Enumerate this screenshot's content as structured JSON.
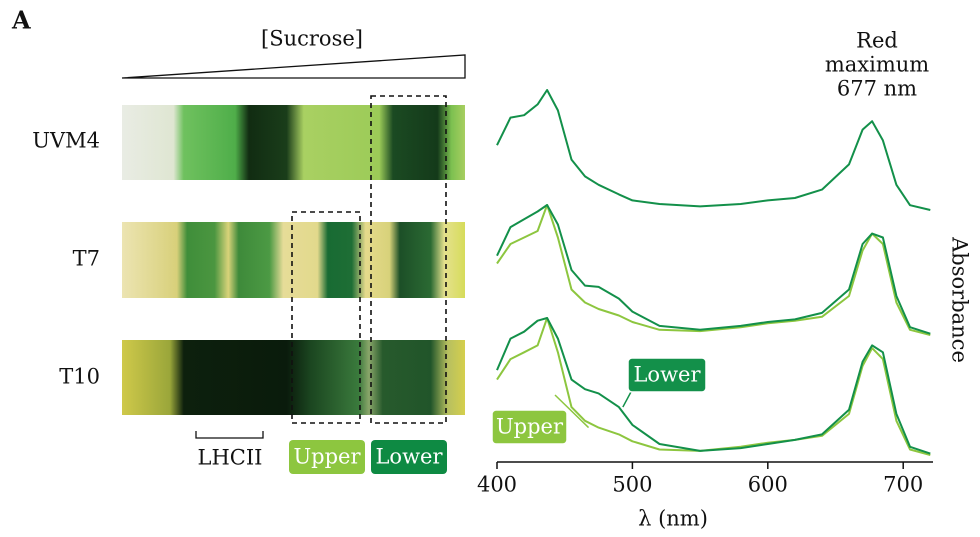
{
  "panel_label": "A",
  "gradient_label": "[Sucrose]",
  "tube_labels": [
    "UVM4",
    "T7",
    "T10"
  ],
  "lhcii_label": "LHCII",
  "band_labels": [
    "Upper",
    "Lower"
  ],
  "chart_data": [
    {
      "type": "line",
      "annotation": [
        "Red",
        "maximum",
        "677 nm"
      ],
      "ylim": [
        0,
        1
      ],
      "x": [
        400,
        410,
        420,
        430,
        437,
        445,
        455,
        465,
        475,
        490,
        500,
        520,
        550,
        580,
        600,
        620,
        640,
        660,
        670,
        677,
        685,
        695,
        705,
        720
      ],
      "series": [
        {
          "color": "#13904a",
          "values": [
            0.54,
            0.77,
            0.79,
            0.88,
            1.0,
            0.83,
            0.42,
            0.28,
            0.21,
            0.13,
            0.08,
            0.05,
            0.03,
            0.05,
            0.08,
            0.1,
            0.17,
            0.38,
            0.67,
            0.74,
            0.58,
            0.21,
            0.04,
            0.0
          ]
        }
      ]
    },
    {
      "type": "line",
      "ylabel": "Absorbance",
      "ylim": [
        0,
        1
      ],
      "x": [
        400,
        410,
        420,
        430,
        437,
        445,
        455,
        465,
        475,
        490,
        500,
        520,
        550,
        580,
        600,
        620,
        640,
        660,
        670,
        677,
        685,
        695,
        705,
        720
      ],
      "series": [
        {
          "color": "#8dc63f",
          "values": [
            0.55,
            0.7,
            0.75,
            0.8,
            1.0,
            0.75,
            0.35,
            0.25,
            0.2,
            0.15,
            0.1,
            0.04,
            0.03,
            0.06,
            0.09,
            0.11,
            0.14,
            0.3,
            0.65,
            0.78,
            0.7,
            0.25,
            0.04,
            0.0
          ]
        },
        {
          "color": "#13904a",
          "values": [
            0.61,
            0.83,
            0.89,
            0.95,
            1.0,
            0.85,
            0.5,
            0.38,
            0.37,
            0.28,
            0.18,
            0.07,
            0.04,
            0.07,
            0.1,
            0.12,
            0.17,
            0.35,
            0.7,
            0.78,
            0.75,
            0.3,
            0.06,
            0.01
          ]
        }
      ]
    },
    {
      "type": "line",
      "xlabel": "λ (nm)",
      "xlim": [
        400,
        722
      ],
      "xticks": [
        400,
        500,
        600,
        700
      ],
      "ylim": [
        0,
        1
      ],
      "x": [
        400,
        410,
        420,
        430,
        437,
        445,
        455,
        465,
        475,
        490,
        500,
        520,
        550,
        580,
        600,
        620,
        640,
        660,
        670,
        677,
        685,
        695,
        705,
        720
      ],
      "series": [
        {
          "name": "Upper",
          "color": "#8dc63f",
          "values": [
            0.55,
            0.7,
            0.75,
            0.8,
            1.0,
            0.75,
            0.35,
            0.25,
            0.2,
            0.15,
            0.1,
            0.04,
            0.03,
            0.06,
            0.09,
            0.11,
            0.14,
            0.3,
            0.65,
            0.78,
            0.7,
            0.25,
            0.04,
            0.0
          ]
        },
        {
          "name": "Lower",
          "color": "#13904a",
          "values": [
            0.62,
            0.85,
            0.9,
            0.98,
            1.0,
            0.85,
            0.55,
            0.48,
            0.45,
            0.35,
            0.22,
            0.08,
            0.03,
            0.05,
            0.08,
            0.11,
            0.15,
            0.33,
            0.68,
            0.8,
            0.75,
            0.3,
            0.06,
            0.01
          ]
        }
      ]
    }
  ]
}
